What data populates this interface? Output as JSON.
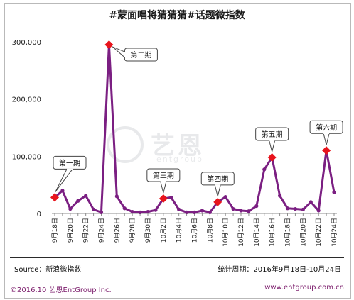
{
  "title": "#蒙面唱将猜猜猜#话题微指数",
  "chart_data": {
    "type": "line",
    "title": "#蒙面唱将猜猜猜#话题微指数",
    "xlabel": "",
    "ylabel": "",
    "ylim": [
      0,
      300000
    ],
    "grid": false,
    "y_ticks": [
      "0",
      "100,000",
      "200,000",
      "300,000"
    ],
    "y_tick_values": [
      0,
      100000,
      200000,
      300000
    ],
    "x_tick_labels": [
      "9月18日",
      "9月20日",
      "9月22日",
      "9月24日",
      "9月26日",
      "9月28日",
      "9月30日",
      "10月2日",
      "10月4日",
      "10月6日",
      "10月8日",
      "10月10日",
      "10月12日",
      "10月14日",
      "10月16日",
      "10月18日",
      "10月20日",
      "10月22日",
      "10月24日"
    ],
    "categories": [
      "9月18日",
      "9月19日",
      "9月20日",
      "9月21日",
      "9月22日",
      "9月23日",
      "9月24日",
      "9月25日",
      "9月26日",
      "9月27日",
      "9月28日",
      "9月29日",
      "9月30日",
      "10月1日",
      "10月2日",
      "10月3日",
      "10月4日",
      "10月5日",
      "10月6日",
      "10月7日",
      "10月8日",
      "10月9日",
      "10月10日",
      "10月11日",
      "10月12日",
      "10月13日",
      "10月14日",
      "10月15日",
      "10月16日",
      "10月17日",
      "10月18日",
      "10月19日",
      "10月20日",
      "10月21日",
      "10月22日",
      "10月23日",
      "10月24日"
    ],
    "series": [
      {
        "name": "",
        "color": "#7b1f82",
        "values": [
          28000,
          40000,
          8000,
          22000,
          31000,
          7000,
          2000,
          295000,
          30000,
          9000,
          3000,
          2000,
          3000,
          6000,
          26000,
          28000,
          7000,
          2000,
          2000,
          5000,
          2000,
          20000,
          29000,
          8000,
          5000,
          4000,
          13000,
          77000,
          98000,
          31000,
          9000,
          8000,
          7000,
          20000,
          5000,
          110000,
          37000
        ]
      }
    ],
    "highlight_color": "#e8141c",
    "annotations": [
      {
        "label": "第一期",
        "date": "9月18日",
        "value": 28000
      },
      {
        "label": "第二期",
        "date": "9月25日",
        "value": 295000
      },
      {
        "label": "第三期",
        "date": "10月2日",
        "value": 26000
      },
      {
        "label": "第四期",
        "date": "10月9日",
        "value": 20000
      },
      {
        "label": "第五期",
        "date": "10月16日",
        "value": 98000
      },
      {
        "label": "第六期",
        "date": "10月23日",
        "value": 110000
      }
    ]
  },
  "footer": {
    "source": "Source：新浪微指数",
    "period": "统计周期：2016年9月18日-10月24日",
    "copyright": "©2016.10  艺恩EntGroup Inc.",
    "website": "www.entgroup.com.cn"
  },
  "watermark": {
    "text": "艺恩",
    "sub": "entgroup"
  }
}
